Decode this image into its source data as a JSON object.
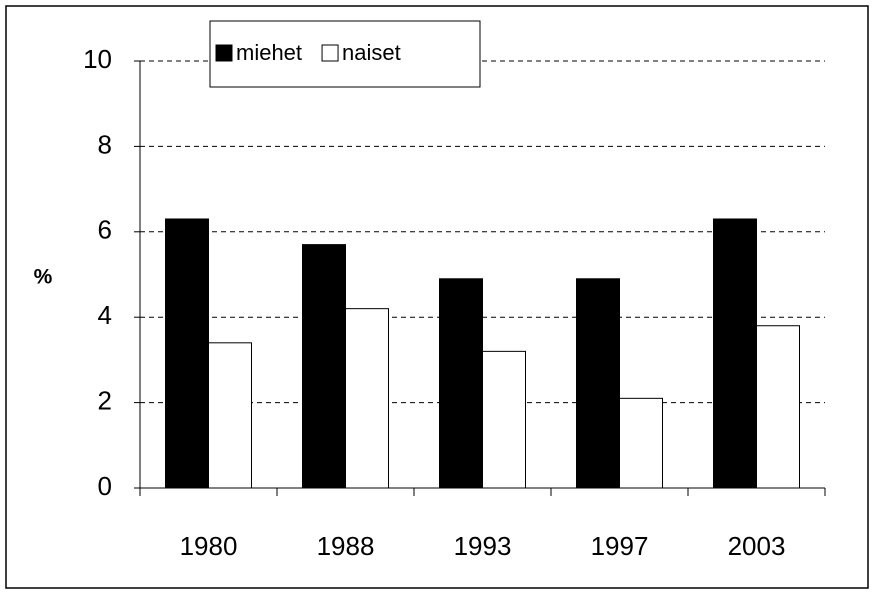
{
  "chart_data": {
    "type": "bar",
    "y_label": "%",
    "categories": [
      "1980",
      "1988",
      "1993",
      "1997",
      "2003"
    ],
    "series": [
      {
        "name": "miehet",
        "color": "#000000",
        "values": [
          6.3,
          5.7,
          4.9,
          4.9,
          6.3
        ]
      },
      {
        "name": "naiset",
        "color": "#ffffff",
        "values": [
          3.4,
          4.2,
          3.2,
          2.1,
          3.8
        ]
      }
    ],
    "ylim": [
      0,
      10
    ],
    "yticks": [
      0,
      2,
      4,
      6,
      8,
      10
    ],
    "grid": true,
    "legend": "top"
  }
}
